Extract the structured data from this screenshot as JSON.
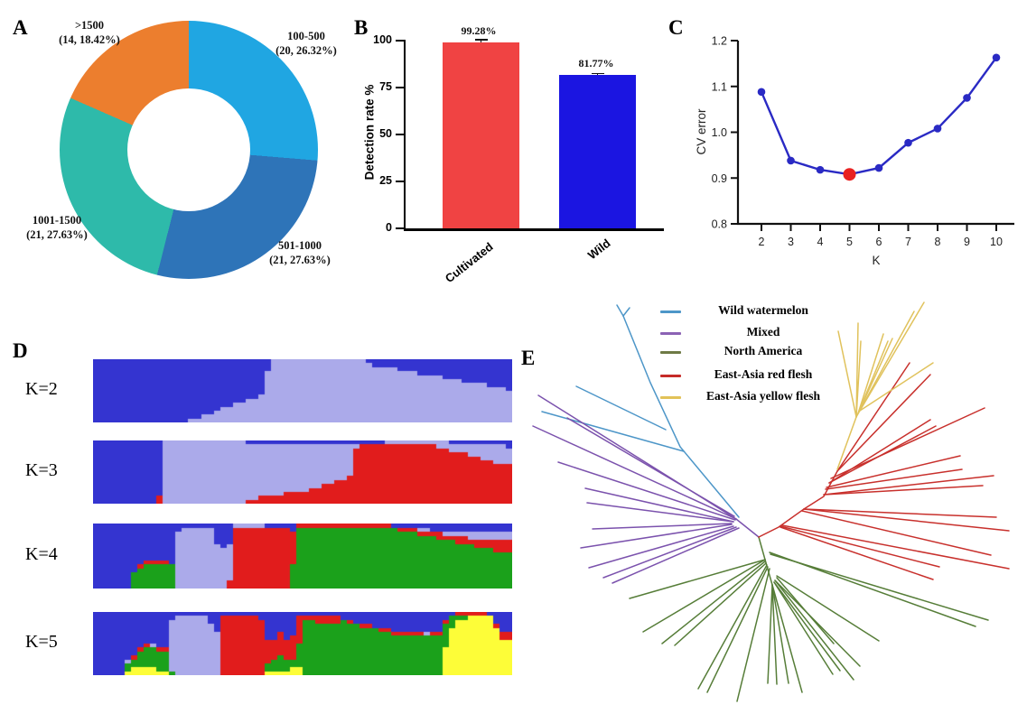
{
  "panel_labels": {
    "a": "A",
    "b": "B",
    "c": "C",
    "d": "D",
    "e": "E"
  },
  "chart_data": [
    {
      "id": "A",
      "type": "pie",
      "donut": true,
      "categories": [
        "100-500",
        "501-1000",
        "1001-1500",
        ">1500"
      ],
      "values": [
        20,
        21,
        21,
        14
      ],
      "pct": [
        26.32,
        27.63,
        27.63,
        18.42
      ],
      "colors": [
        "#20a6e2",
        "#2e74b8",
        "#2ebaaa",
        "#ec7e2e"
      ],
      "slice_labels": [
        {
          "l1": "100-500",
          "l2": "(20, 26.32%)"
        },
        {
          "l1": "501-1000",
          "l2": "(21, 27.63%)"
        },
        {
          "l1": "1001-1500",
          "l2": "(21, 27.63%)"
        },
        {
          "l1": ">1500",
          "l2": "(14, 18.42%)"
        }
      ]
    },
    {
      "id": "B",
      "type": "bar",
      "categories": [
        "Cultivated",
        "Wild"
      ],
      "values": [
        99.28,
        81.77
      ],
      "errors": [
        1.3,
        0.9
      ],
      "value_labels": [
        "99.28%",
        "81.77%"
      ],
      "colors": [
        "#f04343",
        "#1b15e1"
      ],
      "ylabel": "Detection rate %",
      "yticks": [
        0,
        25,
        50,
        75,
        100
      ],
      "ylim": [
        0,
        100
      ]
    },
    {
      "id": "C",
      "type": "line",
      "x": [
        2,
        3,
        4,
        5,
        6,
        7,
        8,
        9,
        10
      ],
      "y": [
        1.088,
        0.938,
        0.918,
        0.908,
        0.922,
        0.977,
        1.008,
        1.075,
        1.163
      ],
      "highlight_x": 5,
      "xlabel": "K",
      "ylabel": "CV error",
      "xticks": [
        2,
        3,
        4,
        5,
        6,
        7,
        8,
        9,
        10
      ],
      "yticks": [
        "0.8",
        "0.9",
        "1.0",
        "1.1",
        "1.2"
      ],
      "ylim": [
        0.8,
        1.2
      ],
      "line_color": "#2a2ac4",
      "marker_color": "#2a2ac4",
      "highlight_color": "#e92121",
      "grid": false
    },
    {
      "id": "D",
      "type": "heatmap",
      "subtype": "admixture-structure",
      "palette": [
        "#3434d0",
        "#abaaea",
        "#e11c1c",
        "#1ba11b",
        "#fdfd38"
      ],
      "palette_names": [
        "dark-blue",
        "periwinkle",
        "red",
        "green",
        "yellow"
      ],
      "rows": [
        {
          "label": "K=2",
          "k": 2,
          "keys": [
            [
              0,
              [
                1,
                0
              ]
            ],
            [
              0.21,
              [
                1,
                0
              ]
            ],
            [
              0.41,
              [
                0.56,
                0.44
              ]
            ],
            [
              0.42,
              [
                0,
                1
              ]
            ],
            [
              0.64,
              [
                0,
                1
              ]
            ],
            [
              0.66,
              [
                0.08,
                0.92
              ]
            ],
            [
              0.97,
              [
                0.45,
                0.55
              ]
            ],
            [
              1,
              [
                0.5,
                0.5
              ]
            ]
          ]
        },
        {
          "label": "K=3",
          "k": 3,
          "keys": [
            [
              0,
              [
                1,
                0,
                0
              ]
            ],
            [
              0.15,
              [
                1,
                0,
                0
              ]
            ],
            [
              0.152,
              [
                0.85,
                0,
                0.15
              ]
            ],
            [
              0.168,
              [
                0.85,
                0,
                0.15
              ]
            ],
            [
              0.17,
              [
                0.02,
                0.98,
                0
              ]
            ],
            [
              0.36,
              [
                0.03,
                0.97,
                0
              ]
            ],
            [
              0.38,
              [
                0.07,
                0.85,
                0.08
              ]
            ],
            [
              0.5,
              [
                0.08,
                0.72,
                0.2
              ]
            ],
            [
              0.62,
              [
                0.08,
                0.5,
                0.42
              ]
            ],
            [
              0.63,
              [
                0.04,
                0,
                0.96
              ]
            ],
            [
              0.78,
              [
                0.02,
                0.03,
                0.95
              ]
            ],
            [
              0.9,
              [
                0.04,
                0.18,
                0.78
              ]
            ],
            [
              0.97,
              [
                0.06,
                0.3,
                0.64
              ]
            ],
            [
              1,
              [
                0.12,
                0.22,
                0.66
              ]
            ]
          ]
        },
        {
          "label": "K=4",
          "k": 4,
          "keys": [
            [
              0,
              [
                1,
                0,
                0,
                0
              ]
            ],
            [
              0.09,
              [
                1,
                0,
                0,
                0
              ]
            ],
            [
              0.1,
              [
                0.7,
                0,
                0.04,
                0.26
              ]
            ],
            [
              0.14,
              [
                0.55,
                0,
                0.05,
                0.4
              ]
            ],
            [
              0.19,
              [
                0.6,
                0,
                0.05,
                0.35
              ]
            ],
            [
              0.2,
              [
                0.1,
                0.9,
                0,
                0
              ]
            ],
            [
              0.28,
              [
                0.05,
                0.95,
                0,
                0
              ]
            ],
            [
              0.3,
              [
                0.35,
                0.65,
                0,
                0
              ]
            ],
            [
              0.325,
              [
                0.35,
                0.65,
                0,
                0
              ]
            ],
            [
              0.33,
              [
                0.02,
                0.02,
                0.96,
                0
              ]
            ],
            [
              0.46,
              [
                0.04,
                0,
                0.96,
                0
              ]
            ],
            [
              0.475,
              [
                0.15,
                0.02,
                0.83,
                0
              ]
            ],
            [
              0.48,
              [
                0.03,
                0,
                0.1,
                0.87
              ]
            ],
            [
              0.5,
              [
                0.02,
                0,
                0.02,
                0.96
              ]
            ],
            [
              0.7,
              [
                0.02,
                0,
                0.02,
                0.96
              ]
            ],
            [
              0.75,
              [
                0.06,
                0.01,
                0.05,
                0.88
              ]
            ],
            [
              0.82,
              [
                0.1,
                0.04,
                0.08,
                0.78
              ]
            ],
            [
              0.88,
              [
                0.1,
                0.1,
                0.1,
                0.7
              ]
            ],
            [
              0.94,
              [
                0.12,
                0.14,
                0.14,
                0.6
              ]
            ],
            [
              1,
              [
                0.1,
                0.12,
                0.22,
                0.56
              ]
            ]
          ]
        },
        {
          "label": "K=5",
          "k": 5,
          "keys": [
            [
              0,
              [
                1,
                0,
                0,
                0,
                0
              ]
            ],
            [
              0.07,
              [
                1,
                0,
                0,
                0,
                0
              ]
            ],
            [
              0.08,
              [
                0.8,
                0.02,
                0.02,
                0.08,
                0.08
              ]
            ],
            [
              0.12,
              [
                0.5,
                0.02,
                0.06,
                0.3,
                0.12
              ]
            ],
            [
              0.16,
              [
                0.55,
                0,
                0.05,
                0.32,
                0.08
              ]
            ],
            [
              0.185,
              [
                0.6,
                0.02,
                0.04,
                0.26,
                0.08
              ]
            ],
            [
              0.19,
              [
                0.05,
                0.93,
                0,
                0,
                0.02
              ]
            ],
            [
              0.27,
              [
                0.04,
                0.94,
                0,
                0,
                0.02
              ]
            ],
            [
              0.29,
              [
                0.3,
                0.68,
                0,
                0,
                0.02
              ]
            ],
            [
              0.302,
              [
                0.3,
                0.68,
                0,
                0,
                0.02
              ]
            ],
            [
              0.305,
              [
                0.03,
                0.01,
                0.96,
                0,
                0
              ]
            ],
            [
              0.4,
              [
                0.08,
                0,
                0.92,
                0,
                0
              ]
            ],
            [
              0.42,
              [
                0.5,
                0,
                0.25,
                0.2,
                0.05
              ]
            ],
            [
              0.45,
              [
                0.3,
                0,
                0.4,
                0.22,
                0.08
              ]
            ],
            [
              0.47,
              [
                0.55,
                0,
                0.25,
                0.12,
                0.08
              ]
            ],
            [
              0.49,
              [
                0.1,
                0,
                0.55,
                0.15,
                0.2
              ]
            ],
            [
              0.5,
              [
                0.04,
                0,
                0.08,
                0.88,
                0
              ]
            ],
            [
              0.56,
              [
                0.05,
                0,
                0.15,
                0.8,
                0
              ]
            ],
            [
              0.6,
              [
                0.12,
                0,
                0.03,
                0.85,
                0
              ]
            ],
            [
              0.68,
              [
                0.25,
                0,
                0.04,
                0.71,
                0
              ]
            ],
            [
              0.74,
              [
                0.3,
                0,
                0.08,
                0.62,
                0
              ]
            ],
            [
              0.79,
              [
                0.35,
                0,
                0.05,
                0.6,
                0
              ]
            ],
            [
              0.83,
              [
                0.3,
                0.03,
                0.05,
                0.62,
                0
              ]
            ],
            [
              0.845,
              [
                0.08,
                0,
                0.03,
                0.25,
                0.64
              ]
            ],
            [
              0.87,
              [
                0.03,
                0,
                0.02,
                0.08,
                0.87
              ]
            ],
            [
              0.92,
              [
                0.02,
                0,
                0.02,
                0,
                0.96
              ]
            ],
            [
              0.96,
              [
                0.04,
                0,
                0.04,
                0,
                0.92
              ]
            ],
            [
              0.965,
              [
                0.35,
                0,
                0.12,
                0,
                0.53
              ]
            ],
            [
              1,
              [
                0.32,
                0,
                0.1,
                0,
                0.58
              ]
            ]
          ]
        }
      ]
    },
    {
      "id": "E",
      "type": "tree",
      "subtype": "unrooted-phylogenetic",
      "legend": [
        {
          "label": "Wild watermelon",
          "color": "#4d96c8"
        },
        {
          "label": "Mixed",
          "color": "#8b62b4"
        },
        {
          "label": "North America",
          "color": "#6e7a45"
        },
        {
          "label": "East-Asia red flesh",
          "color": "#c62b28"
        },
        {
          "label": "East-Asia yellow flesh",
          "color": "#e2c258"
        }
      ],
      "groups": [
        {
          "name": "wild-watermelon",
          "color": "#4d96c8",
          "branches": [
            "818,573 753,495 720,424 690,350",
            "690,350 683,338",
            "690,350 697,341",
            "737,476 638,428",
            "757,500 600,456"
          ]
        },
        {
          "name": "mixed",
          "color": "#7b52ad",
          "branches": [
            "840,595 815,575",
            "815,575 596,438",
            "813,572 628,463",
            "815,575 590,472",
            "814,576 618,512",
            "812,578 648,541",
            "812,578 650,557",
            "810,580 656,586",
            "810,581 643,607",
            "812,583 652,629",
            "815,584 668,640",
            "818,585 678,646"
          ]
        },
        {
          "name": "north-america",
          "color": "#567d38",
          "branches": [
            "840,595 847,620",
            "847,620 697,663",
            "847,620 712,700",
            "847,622 733,713",
            "848,624 747,715",
            "849,626 773,763",
            "850,628 783,767",
            "852,630 816,777",
            "847,620 855,648",
            "855,648 850,757",
            "855,648 860,758",
            "855,648 873,757",
            "855,648 888,767",
            "857,645 922,747",
            "857,645 930,743",
            "858,643 945,753",
            "858,643 952,738",
            "860,640 923,713",
            "860,638 973,710",
            "852,612 1080,694",
            "853,614 1094,687"
          ]
        },
        {
          "name": "east-asia-red-flesh",
          "color": "#c8302c",
          "branches": [
            "840,595 862,584 890,564 912,550 927,522",
            "927,522 1007,402",
            "927,522 1030,415",
            "920,530 1090,452",
            "918,535 1030,465",
            "918,535 1036,472",
            "915,540 1063,505",
            "914,542 1065,520",
            "912,548 1100,527",
            "912,548 1088,538",
            "890,564 1103,573",
            "890,564 1117,588",
            "888,566 1097,615",
            "866,582 1117,630",
            "864,583 1040,628",
            "864,584 1033,642"
          ]
        },
        {
          "name": "east-asia-yellow-flesh",
          "color": "#e0c25c",
          "branches": [
            "927,520 948,462",
            "948,462 928,367",
            "948,462 950,358",
            "948,462 953,378",
            "950,458 978,370",
            "950,458 983,378",
            "950,458 988,375",
            "952,455 1023,335",
            "952,455 1033,402",
            "948,462 1012,345"
          ]
        }
      ]
    }
  ]
}
